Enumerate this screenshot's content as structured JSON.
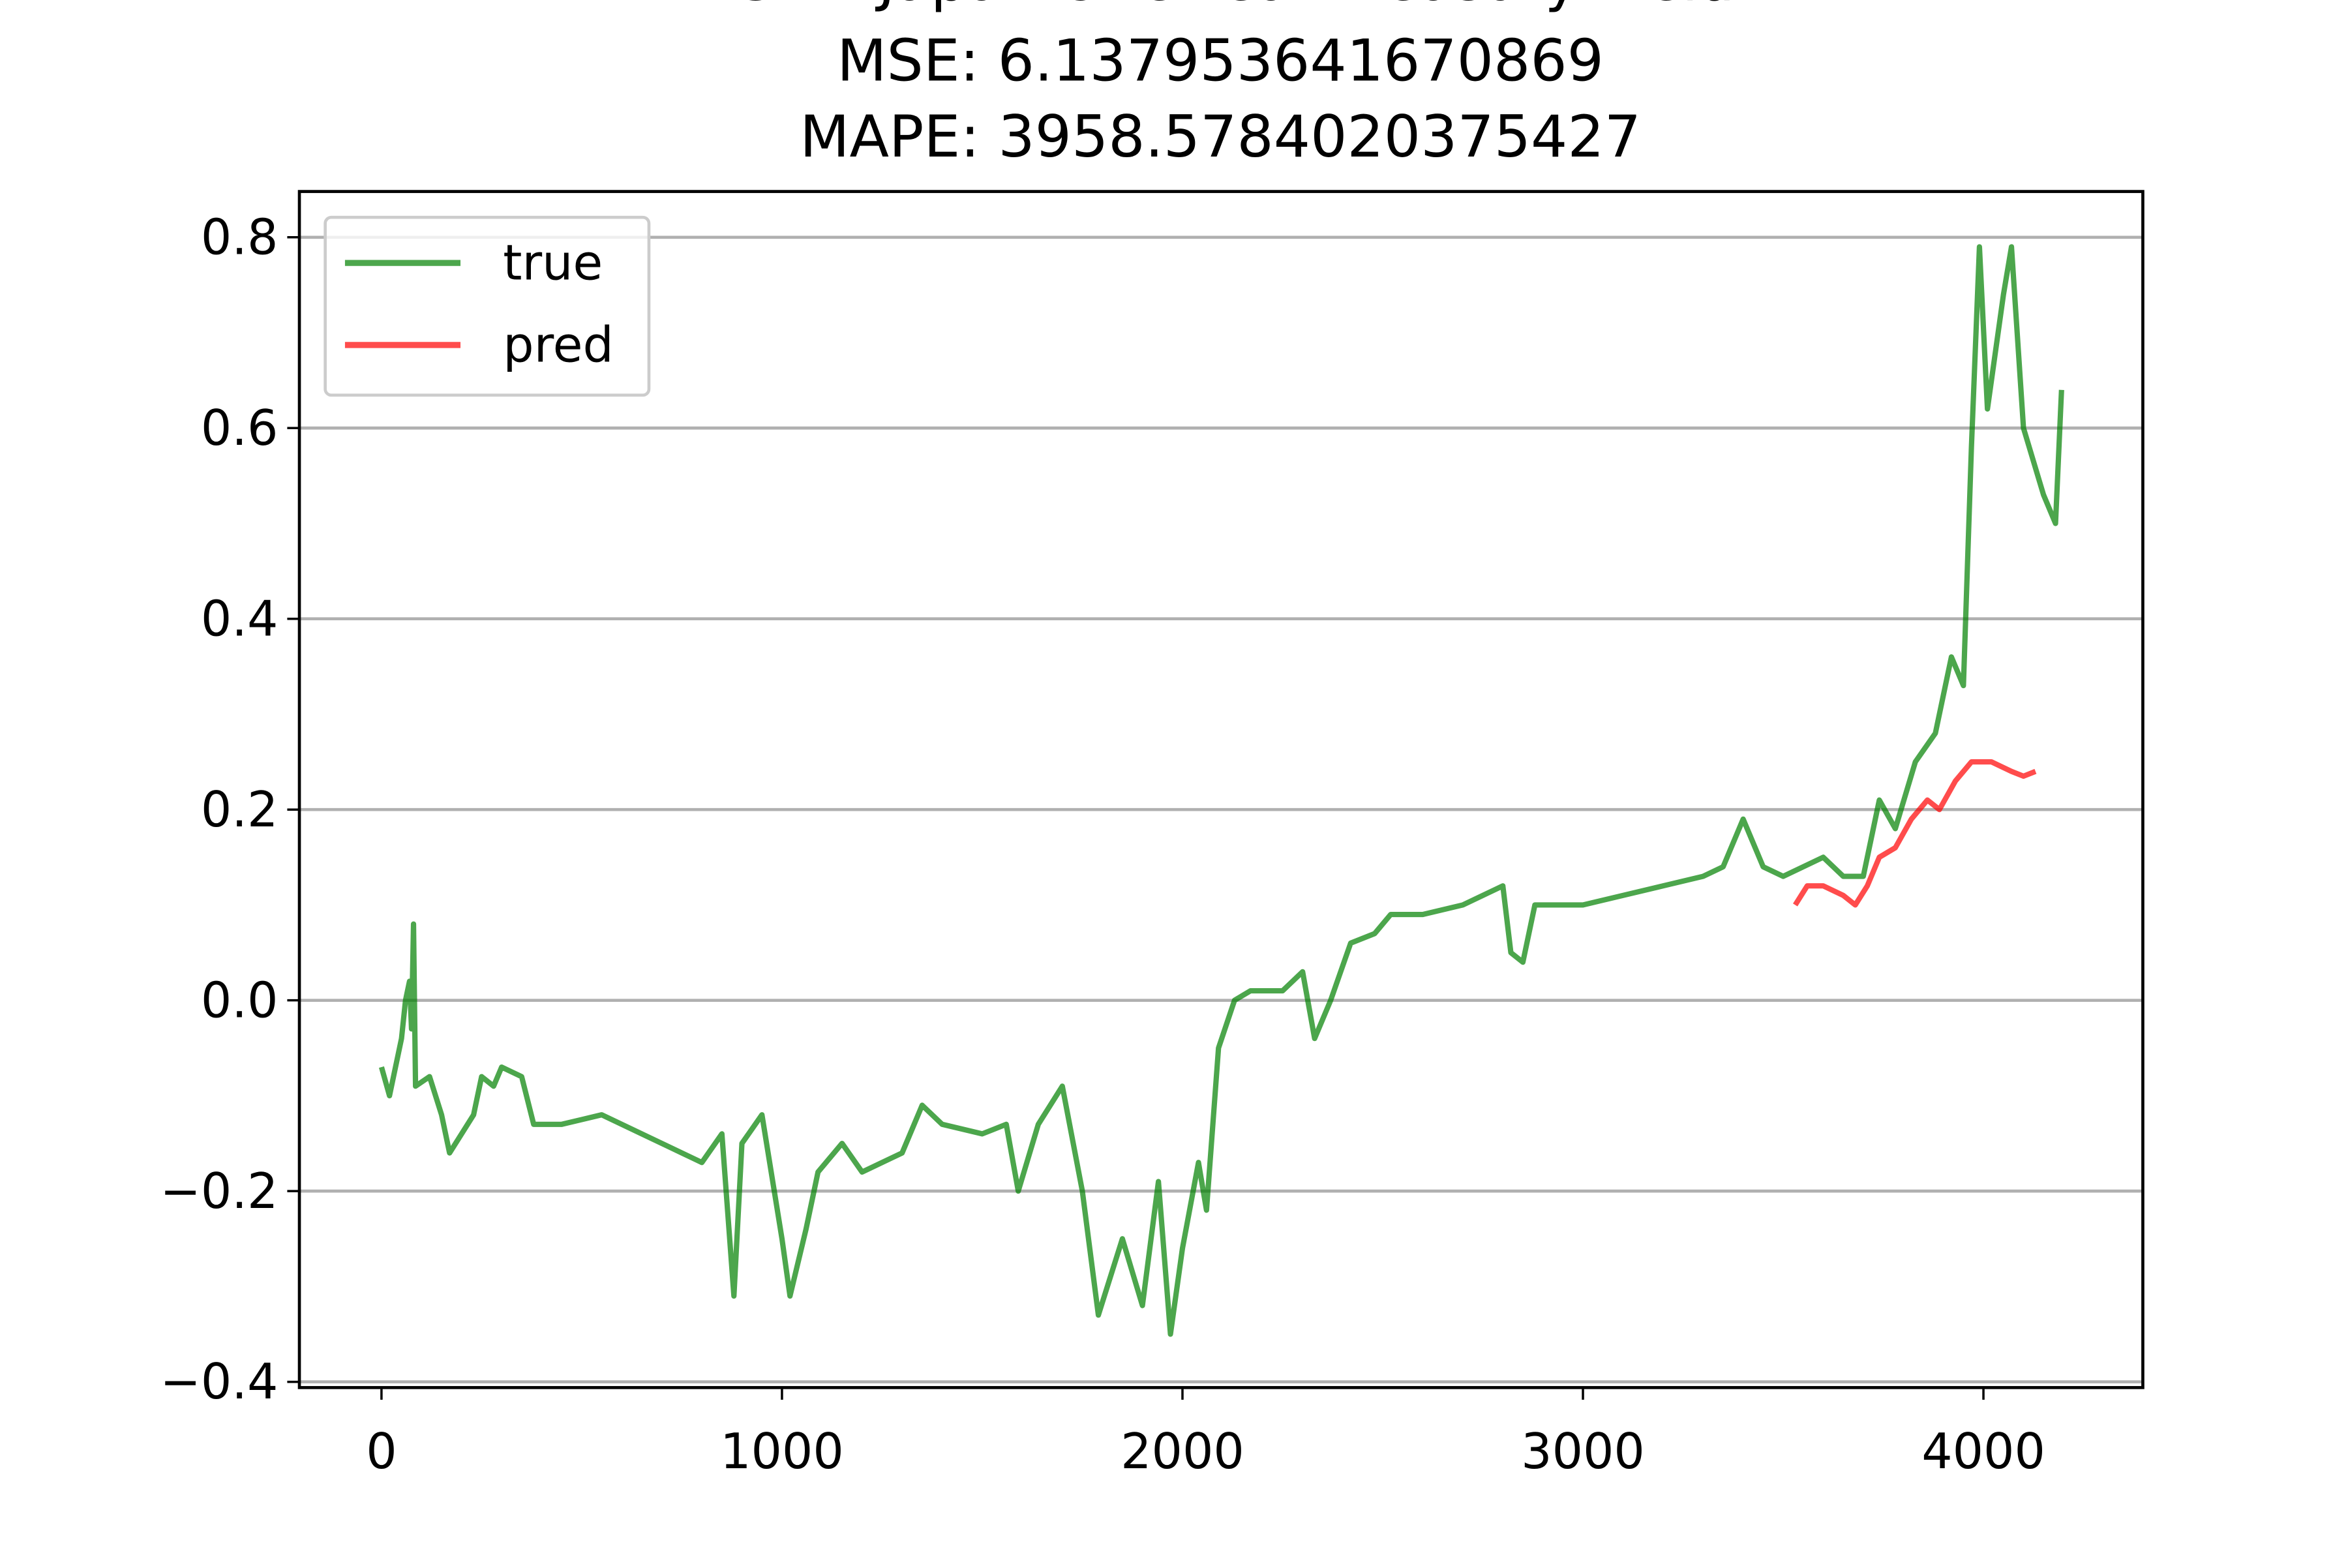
{
  "chart_data": {
    "type": "line",
    "title": "LSTM Japan One Year Treasury Yield",
    "subtitle": [
      "MSE: 6.137953641670869",
      "MAPE: 3958.5784020375427"
    ],
    "xlim": [
      -205,
      4398
    ],
    "ylim": [
      -0.406,
      0.848
    ],
    "xticks": [
      0,
      1000,
      2000,
      3000,
      4000
    ],
    "yticks": [
      {
        "value": -0.4,
        "label": "−0.4"
      },
      {
        "value": -0.2,
        "label": "−0.2"
      },
      {
        "value": 0,
        "label": "0.0"
      },
      0.2,
      0.4,
      0.6,
      0.8
    ],
    "grid": true,
    "legend": "upper left",
    "series": [
      {
        "name": "true",
        "color": "#008000",
        "opacity": 0.7,
        "x": [
          0,
          20,
          40,
          50,
          60,
          70,
          75,
          80,
          85,
          120,
          150,
          170,
          200,
          230,
          250,
          280,
          300,
          350,
          380,
          450,
          550,
          650,
          750,
          800,
          850,
          880,
          900,
          950,
          1000,
          1020,
          1060,
          1090,
          1150,
          1200,
          1300,
          1350,
          1400,
          1500,
          1560,
          1590,
          1640,
          1700,
          1750,
          1790,
          1850,
          1900,
          1940,
          1970,
          2000,
          2040,
          2060,
          2090,
          2130,
          2170,
          2250,
          2300,
          2330,
          2370,
          2420,
          2480,
          2520,
          2600,
          2700,
          2750,
          2800,
          2820,
          2850,
          2880,
          3000,
          3100,
          3200,
          3300,
          3350,
          3400,
          3450,
          3500,
          3600,
          3650,
          3700,
          3740,
          3780,
          3830,
          3880,
          3920,
          3950,
          3970,
          3990,
          4010,
          4050,
          4070,
          4100,
          4150,
          4180,
          4195
        ],
        "values": [
          -0.07,
          -0.1,
          -0.06,
          -0.04,
          0.0,
          0.02,
          -0.03,
          0.08,
          -0.09,
          -0.08,
          -0.12,
          -0.16,
          -0.14,
          -0.12,
          -0.08,
          -0.09,
          -0.07,
          -0.08,
          -0.13,
          -0.13,
          -0.12,
          -0.14,
          -0.16,
          -0.17,
          -0.14,
          -0.31,
          -0.15,
          -0.12,
          -0.25,
          -0.31,
          -0.24,
          -0.18,
          -0.15,
          -0.18,
          -0.16,
          -0.11,
          -0.13,
          -0.14,
          -0.13,
          -0.2,
          -0.13,
          -0.09,
          -0.2,
          -0.33,
          -0.25,
          -0.32,
          -0.19,
          -0.35,
          -0.26,
          -0.17,
          -0.22,
          -0.05,
          0.0,
          0.01,
          0.01,
          0.03,
          -0.04,
          0.0,
          0.06,
          0.07,
          0.09,
          0.09,
          0.1,
          0.11,
          0.12,
          0.05,
          0.04,
          0.1,
          0.1,
          0.11,
          0.12,
          0.13,
          0.14,
          0.19,
          0.14,
          0.13,
          0.15,
          0.13,
          0.13,
          0.21,
          0.18,
          0.25,
          0.28,
          0.36,
          0.33,
          0.58,
          0.79,
          0.62,
          0.74,
          0.79,
          0.6,
          0.53,
          0.5,
          0.64
        ]
      },
      {
        "name": "pred",
        "color": "#ff0000",
        "opacity": 0.7,
        "x": [
          3530,
          3560,
          3600,
          3650,
          3680,
          3710,
          3740,
          3780,
          3820,
          3860,
          3890,
          3930,
          3970,
          4020,
          4070,
          4100,
          4130
        ],
        "values": [
          0.1,
          0.12,
          0.12,
          0.11,
          0.1,
          0.12,
          0.15,
          0.16,
          0.19,
          0.21,
          0.2,
          0.23,
          0.25,
          0.25,
          0.24,
          0.235,
          0.24
        ]
      }
    ]
  }
}
